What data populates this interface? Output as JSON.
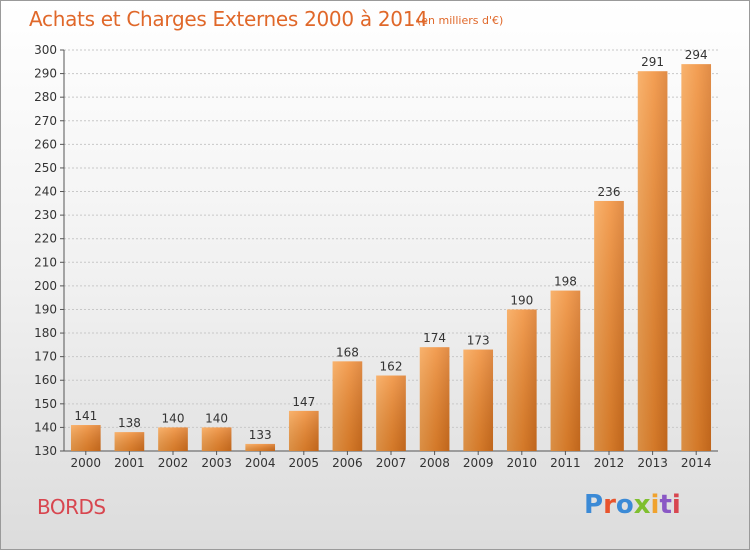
{
  "chart_data": {
    "type": "bar",
    "title": "Achats et Charges Externes 2000 à 2014",
    "subtitle": "(en milliers d'€)",
    "categories": [
      "2000",
      "2001",
      "2002",
      "2003",
      "2004",
      "2005",
      "2006",
      "2007",
      "2008",
      "2009",
      "2010",
      "2011",
      "2012",
      "2013",
      "2014"
    ],
    "values": [
      141,
      138,
      140,
      140,
      133,
      147,
      168,
      162,
      174,
      173,
      190,
      198,
      236,
      291,
      294
    ],
    "ylim": [
      130,
      300
    ],
    "yticks": [
      130,
      140,
      150,
      160,
      170,
      180,
      190,
      200,
      210,
      220,
      230,
      240,
      250,
      260,
      270,
      280,
      290,
      300
    ],
    "grid": true,
    "bar_color": "#f0892e",
    "xlabel": "",
    "ylabel": ""
  },
  "footer": {
    "town": "BORDS",
    "logo_text": "Proxiti",
    "logo_colors": [
      "#3b8ad6",
      "#e8542d",
      "#3b8ad6",
      "#7fbf2f",
      "#f0a22e",
      "#8a58c5",
      "#d8464f"
    ]
  }
}
